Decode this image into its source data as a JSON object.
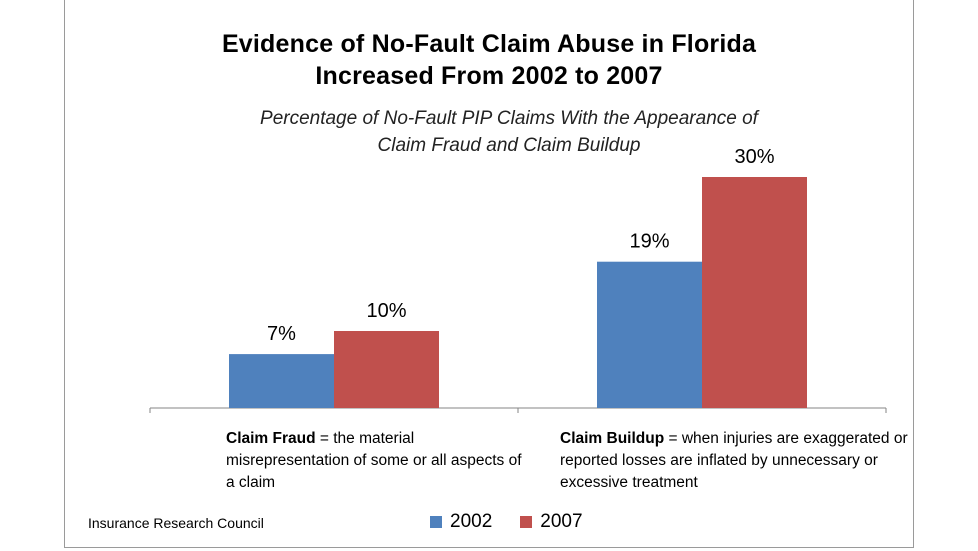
{
  "chart_data": {
    "type": "bar",
    "title_line1": "Evidence of No-Fault Claim Abuse in Florida",
    "title_line2": "Increased From 2002 to 2007",
    "subtitle_line1": "Percentage of No-Fault PIP Claims With the Appearance of",
    "subtitle_line2": "Claim Fraud and Claim Buildup",
    "categories": [
      "Claim Fraud",
      "Claim Buildup"
    ],
    "series": [
      {
        "name": "2002",
        "values": [
          7,
          19
        ],
        "labels": [
          "7%",
          "19%"
        ],
        "color": "#4f81bd"
      },
      {
        "name": "2007",
        "values": [
          10,
          30
        ],
        "labels": [
          "10%",
          "30%"
        ],
        "color": "#c0504d"
      }
    ],
    "ylim": [
      0,
      40
    ],
    "xlabel": "",
    "ylabel": "",
    "legend_position": "bottom"
  },
  "descriptions": [
    {
      "term": "Claim Fraud",
      "rest": " = the material misrepresentation of some or all aspects of a claim"
    },
    {
      "term": "Claim Buildup",
      "rest": " = when injuries are exaggerated or reported losses are inflated by unnecessary or excessive treatment"
    }
  ],
  "source": "Insurance Research Council",
  "axis_color": "#868686"
}
